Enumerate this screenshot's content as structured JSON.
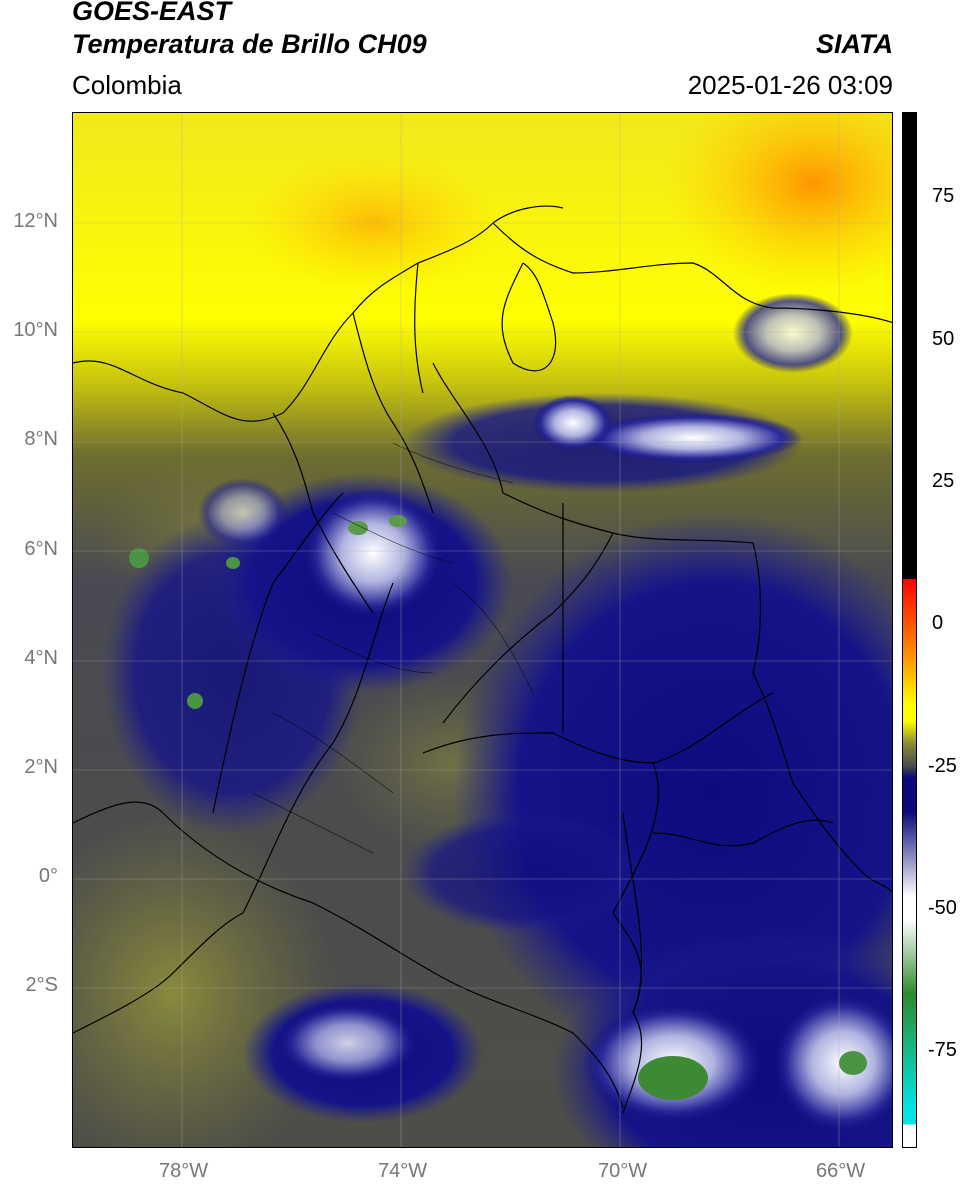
{
  "header": {
    "satellite": "GOES-EAST",
    "product": "Temperatura de Brillo CH09",
    "region": "Colombia",
    "org": "SIATA",
    "datetime": "2025-01-26 03:09"
  },
  "map": {
    "lat_ticks": [
      "12°N",
      "10°N",
      "8°N",
      "6°N",
      "4°N",
      "2°N",
      "0°",
      "2°S"
    ],
    "lon_ticks": [
      "78°W",
      "74°W",
      "70°W",
      "66°W"
    ],
    "lon_range": [
      -80,
      -65
    ],
    "lat_range": [
      -5.2,
      14
    ]
  },
  "colorbar": {
    "ticks": [
      "75",
      "50",
      "25",
      "0",
      "-25",
      "-50",
      "-75"
    ],
    "values": [
      75,
      50,
      25,
      0,
      -25,
      -50,
      -75
    ],
    "range": [
      -92,
      90
    ],
    "colors": {
      "black": "#000000",
      "red": "#ff0000",
      "orange": "#ff8c00",
      "yellow": "#ffff00",
      "olive": "#8a8a3a",
      "gray": "#4a4a4a",
      "navy": "#0a0a7a",
      "white": "#ffffff",
      "green": "#2e8b2e",
      "cyan": "#00e5e5"
    }
  }
}
